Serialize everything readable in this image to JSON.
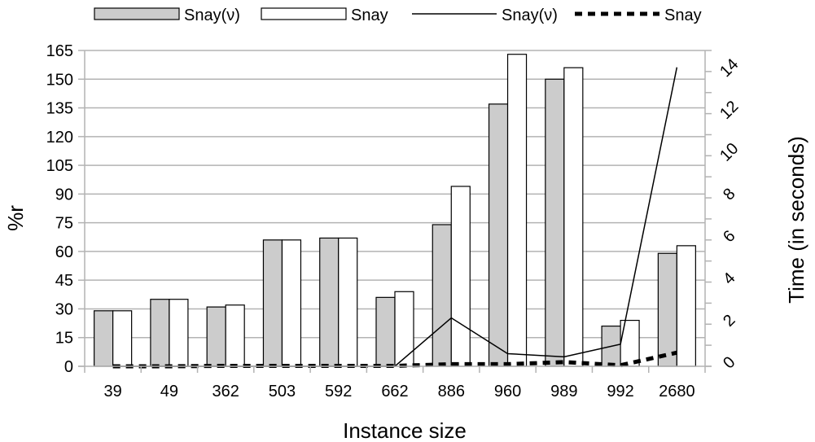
{
  "chart_data": {
    "type": "bar",
    "xlabel": "Instance size",
    "ylabel": "%r",
    "y2label": "Time (in seconds)",
    "categories": [
      "39",
      "49",
      "362",
      "503",
      "592",
      "662",
      "886",
      "960",
      "989",
      "992",
      "2680"
    ],
    "ylim": [
      0,
      165
    ],
    "yticks": [
      0,
      15,
      30,
      45,
      60,
      75,
      90,
      105,
      120,
      135,
      150,
      165
    ],
    "y2lim": [
      0,
      15
    ],
    "y2ticks": [
      0,
      2,
      4,
      6,
      8,
      10,
      12,
      14
    ],
    "grid": true,
    "legend_position": "top",
    "series": [
      {
        "name": "Snay(ν)",
        "kind": "bar",
        "axis": "left",
        "color": "#cccccc",
        "values": [
          29,
          35,
          31,
          66,
          67,
          36,
          74,
          137,
          150,
          21,
          59
        ]
      },
      {
        "name": "Snay",
        "kind": "bar",
        "axis": "left",
        "color": "#ffffff",
        "values": [
          29,
          35,
          32,
          66,
          67,
          39,
          94,
          163,
          156,
          24,
          63
        ]
      },
      {
        "name": "Snay(ν)",
        "kind": "line",
        "axis": "right",
        "style": "solid",
        "color": "#000000",
        "values": [
          0,
          0,
          0,
          0,
          0,
          0,
          2.3,
          0.6,
          0.45,
          1.05,
          14.2
        ]
      },
      {
        "name": "Snay",
        "kind": "line",
        "axis": "right",
        "style": "dashed",
        "color": "#000000",
        "values": [
          0,
          0,
          0.02,
          0.02,
          0.02,
          0.02,
          0.1,
          0.1,
          0.2,
          0.05,
          0.65
        ]
      }
    ]
  }
}
